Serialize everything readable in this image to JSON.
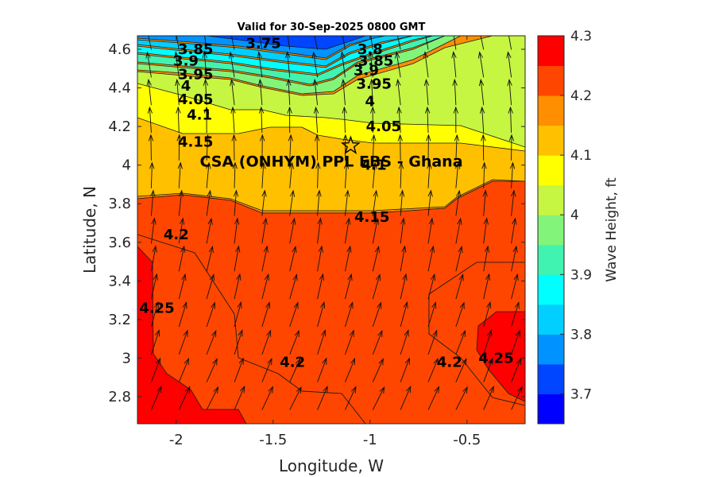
{
  "chart_data": {
    "type": "contour",
    "title": "Valid for 30-Sep-2025 0800 GMT",
    "xlabel": "Longitude, W",
    "ylabel": "Latitude, N",
    "colorbar_label": "Wave Height, ft",
    "xlim": [
      -2.2,
      -0.2
    ],
    "ylim": [
      2.66,
      4.67
    ],
    "x_ticks": [
      -2,
      -1.5,
      -1,
      -0.5
    ],
    "x_tick_labels": [
      "-2",
      "-1.5",
      "-1",
      "-0.5"
    ],
    "y_ticks": [
      2.8,
      3,
      3.2,
      3.4,
      3.6,
      3.8,
      4,
      4.2,
      4.4,
      4.6
    ],
    "y_tick_labels": [
      "2.8",
      "3",
      "3.2",
      "3.4",
      "3.6",
      "3.8",
      "4",
      "4.2",
      "4.4",
      "4.6"
    ],
    "colorbar_range": [
      3.65,
      4.3
    ],
    "colorbar_ticks": [
      3.7,
      3.8,
      3.9,
      4,
      4.1,
      4.2,
      4.3
    ],
    "colorbar_tick_labels": [
      "3.7",
      "3.8",
      "3.9",
      "4",
      "4.1",
      "4.2",
      "4.3"
    ],
    "levels": [
      {
        "value": 3.65,
        "color": "#0000ff"
      },
      {
        "value": 3.7,
        "color": "#0045ff"
      },
      {
        "value": 3.75,
        "color": "#0093ff"
      },
      {
        "value": 3.8,
        "color": "#00cfff"
      },
      {
        "value": 3.85,
        "color": "#00ffff"
      },
      {
        "value": 3.9,
        "color": "#40f3b0"
      },
      {
        "value": 3.95,
        "color": "#83f47a"
      },
      {
        "value": 4.0,
        "color": "#c6f542"
      },
      {
        "value": 4.05,
        "color": "#ffff00"
      },
      {
        "value": 4.1,
        "color": "#ffc000"
      },
      {
        "value": 4.15,
        "color": "#ff8e00"
      },
      {
        "value": 4.2,
        "color": "#ff4600"
      },
      {
        "value": 4.25,
        "color": "#ff0000"
      }
    ],
    "contour_labels": [
      {
        "text": "3.75",
        "lon": -1.55,
        "lat": 4.63
      },
      {
        "text": "3.85",
        "lon": -1.9,
        "lat": 4.6
      },
      {
        "text": "3.9",
        "lon": -1.95,
        "lat": 4.54
      },
      {
        "text": "3.95",
        "lon": -1.9,
        "lat": 4.47
      },
      {
        "text": "4",
        "lon": -1.95,
        "lat": 4.41
      },
      {
        "text": "4.05",
        "lon": -1.9,
        "lat": 4.34
      },
      {
        "text": "4.1",
        "lon": -1.88,
        "lat": 4.26
      },
      {
        "text": "4.15",
        "lon": -1.9,
        "lat": 4.12
      },
      {
        "text": "3.8",
        "lon": -1.0,
        "lat": 4.6
      },
      {
        "text": "3.85",
        "lon": -0.97,
        "lat": 4.54
      },
      {
        "text": "3.9",
        "lon": -1.02,
        "lat": 4.49
      },
      {
        "text": "3.95",
        "lon": -0.98,
        "lat": 4.42
      },
      {
        "text": "4",
        "lon": -1.0,
        "lat": 4.33
      },
      {
        "text": "4.05",
        "lon": -0.93,
        "lat": 4.2
      },
      {
        "text": "4.1",
        "lon": -0.98,
        "lat": 4.0
      },
      {
        "text": "4.15",
        "lon": -0.99,
        "lat": 3.73
      },
      {
        "text": "4.2",
        "lon": -2.0,
        "lat": 3.64
      },
      {
        "text": "4.25",
        "lon": -2.1,
        "lat": 3.26
      },
      {
        "text": "4.2",
        "lon": -1.4,
        "lat": 2.98
      },
      {
        "text": "4.2",
        "lon": -0.59,
        "lat": 2.98
      },
      {
        "text": "4.25",
        "lon": -0.35,
        "lat": 3.0
      }
    ],
    "site": {
      "name": "CSA (ONHYM) PPL EBS  - Ghana",
      "lon": -1.1,
      "lat": 4.1
    }
  }
}
